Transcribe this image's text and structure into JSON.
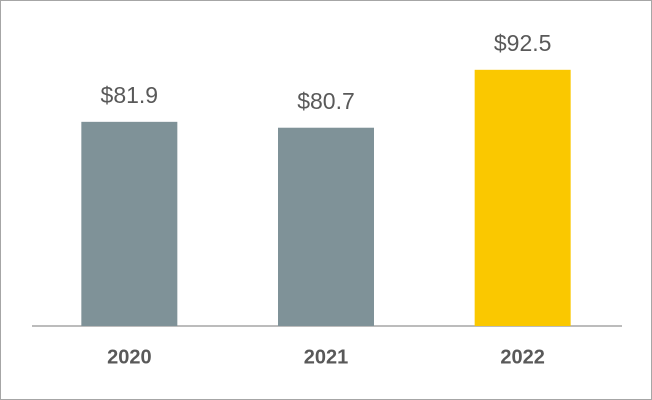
{
  "chart_data": {
    "type": "bar",
    "categories": [
      "2020",
      "2021",
      "2022"
    ],
    "values": [
      81.9,
      80.7,
      92.5
    ],
    "value_labels": [
      "$81.9",
      "$80.7",
      "$92.5"
    ],
    "colors": [
      "#7f9298",
      "#7f9298",
      "#fac800"
    ],
    "ylim": [
      40.3,
      100
    ]
  }
}
